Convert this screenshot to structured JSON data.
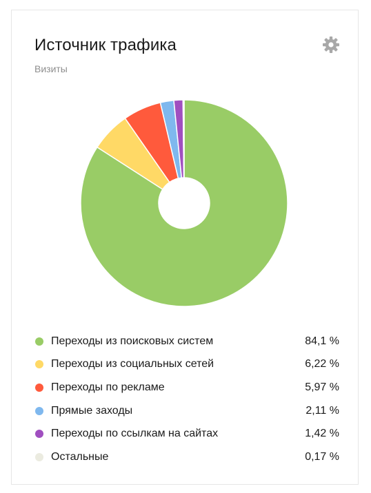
{
  "header": {
    "title": "Источник трафика",
    "subtitle": "Визиты"
  },
  "icons": {
    "settings": "gear-icon"
  },
  "chart_data": {
    "type": "pie",
    "donut": true,
    "categories": [
      "Переходы из поисковых систем",
      "Переходы из социальных сетей",
      "Переходы по рекламе",
      "Прямые заходы",
      "Переходы по ссылкам на сайтах",
      "Остальные"
    ],
    "values": [
      84.1,
      6.22,
      5.97,
      2.11,
      1.42,
      0.17
    ],
    "colors": [
      "#99cc66",
      "#ffd966",
      "#ff5a3c",
      "#7fb8ee",
      "#a04fc0",
      "#ebebe0"
    ]
  },
  "legend": {
    "items": [
      {
        "label": "Переходы из поисковых систем",
        "value": "84,1 %",
        "color": "#99cc66"
      },
      {
        "label": "Переходы из социальных сетей",
        "value": "6,22 %",
        "color": "#ffd966"
      },
      {
        "label": "Переходы по рекламе",
        "value": "5,97 %",
        "color": "#ff5a3c"
      },
      {
        "label": "Прямые заходы",
        "value": "2,11 %",
        "color": "#7fb8ee"
      },
      {
        "label": "Переходы по ссылкам на сайтах",
        "value": "1,42 %",
        "color": "#a04fc0"
      },
      {
        "label": "Остальные",
        "value": "0,17 %",
        "color": "#ebebe0"
      }
    ]
  }
}
